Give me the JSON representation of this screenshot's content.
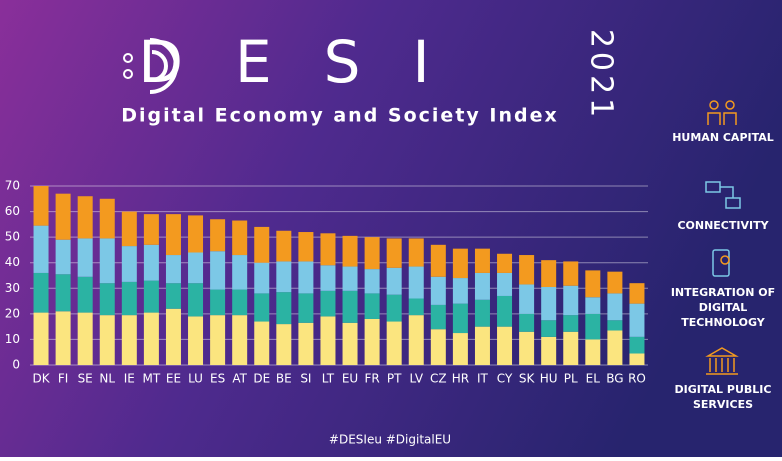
{
  "chart_data": {
    "type": "stacked_bar",
    "title": "DESI",
    "year": "2021",
    "subtitle": "Digital Economy and Society Index",
    "footer": "#DESIeu  #DigitalEU",
    "categories": [
      "DK",
      "FI",
      "SE",
      "NL",
      "IE",
      "MT",
      "EE",
      "LU",
      "ES",
      "AT",
      "DE",
      "BE",
      "SI",
      "LT",
      "EU",
      "FR",
      "PT",
      "LV",
      "CZ",
      "HR",
      "IT",
      "CY",
      "SK",
      "HU",
      "PL",
      "EL",
      "BG",
      "RO"
    ],
    "series": [
      {
        "name": "HUMAN CAPITAL",
        "color": "#fbe57f",
        "values": [
          20.5,
          21,
          20.5,
          19.5,
          19.5,
          20.5,
          22,
          19,
          19.5,
          19.5,
          17,
          16,
          16.5,
          19,
          16.5,
          18,
          17,
          19.5,
          14,
          12.5,
          15,
          15,
          13,
          11,
          13,
          10,
          13.5,
          4.5
        ]
      },
      {
        "name": "CONNECTIVITY",
        "color": "#2bb3a3",
        "values": [
          15.5,
          14.5,
          14,
          12.5,
          13,
          12.5,
          10,
          13,
          10,
          10,
          11,
          12.5,
          11.5,
          10,
          12.5,
          10,
          10.5,
          6.5,
          9.5,
          11.5,
          10.5,
          12,
          7,
          6.5,
          6.5,
          10,
          4,
          6.5
        ]
      },
      {
        "name": "INTEGRATION OF DIGITAL TECHNOLOGY",
        "color": "#7cc8e6",
        "values": [
          18.5,
          13.5,
          15,
          17.5,
          14,
          14,
          11,
          12,
          15,
          13.5,
          12,
          12,
          12.5,
          10,
          9.5,
          9.5,
          10.5,
          12.5,
          11,
          10,
          10.5,
          9,
          11.5,
          13,
          11.5,
          6.5,
          10.5,
          13
        ]
      },
      {
        "name": "DIGITAL PUBLIC SERVICES",
        "color": "#f39a1f",
        "values": [
          15.5,
          18,
          16.5,
          15.5,
          13.5,
          12,
          16,
          14.5,
          12.5,
          13.5,
          14,
          12,
          11.5,
          12.5,
          12,
          12.5,
          11.5,
          11,
          12.5,
          11.5,
          9.5,
          7.5,
          11.5,
          10.5,
          9.5,
          10.5,
          8.5,
          8
        ]
      }
    ],
    "ylim": [
      0,
      70
    ],
    "yticks": [
      0,
      10,
      20,
      30,
      40,
      50,
      60,
      70
    ],
    "grid": true
  }
}
